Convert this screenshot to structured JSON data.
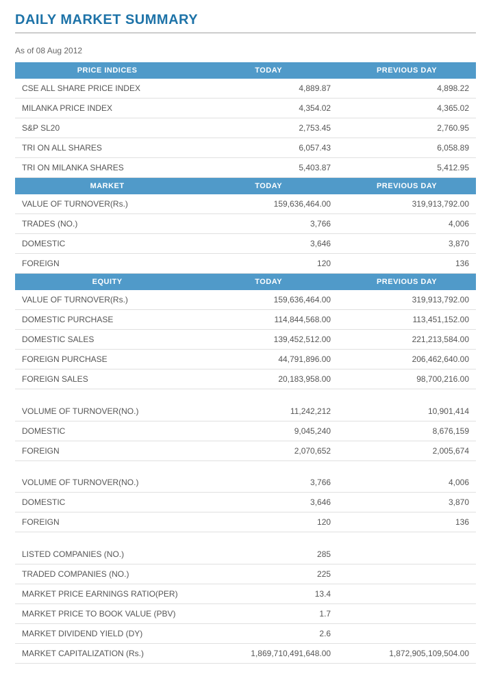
{
  "page_title": "DAILY MARKET SUMMARY",
  "as_of": "As of 08 Aug 2012",
  "colors": {
    "title": "#1e73a8",
    "header_bg": "#509ac9",
    "header_text": "#ffffff",
    "text": "#555555",
    "divider": "#e0e0e0",
    "title_divider": "#cccccc"
  },
  "columns": {
    "today": "TODAY",
    "previous": "PREVIOUS DAY"
  },
  "sections": [
    {
      "title": "PRICE INDICES",
      "groups": [
        [
          {
            "label": "CSE ALL SHARE PRICE INDEX",
            "today": "4,889.87",
            "previous": "4,898.22"
          },
          {
            "label": "MILANKA PRICE INDEX",
            "today": "4,354.02",
            "previous": "4,365.02"
          },
          {
            "label": "S&P SL20",
            "today": "2,753.45",
            "previous": "2,760.95"
          },
          {
            "label": "TRI ON ALL SHARES",
            "today": "6,057.43",
            "previous": "6,058.89"
          },
          {
            "label": "TRI ON MILANKA SHARES",
            "today": "5,403.87",
            "previous": "5,412.95"
          }
        ]
      ]
    },
    {
      "title": "MARKET",
      "groups": [
        [
          {
            "label": "VALUE OF TURNOVER(Rs.)",
            "today": "159,636,464.00",
            "previous": "319,913,792.00"
          },
          {
            "label": "TRADES (NO.)",
            "today": "3,766",
            "previous": "4,006"
          },
          {
            "label": "DOMESTIC",
            "today": "3,646",
            "previous": "3,870"
          },
          {
            "label": "FOREIGN",
            "today": "120",
            "previous": "136"
          }
        ]
      ]
    },
    {
      "title": "EQUITY",
      "groups": [
        [
          {
            "label": "VALUE OF TURNOVER(Rs.)",
            "today": "159,636,464.00",
            "previous": "319,913,792.00"
          },
          {
            "label": "DOMESTIC PURCHASE",
            "today": "114,844,568.00",
            "previous": "113,451,152.00"
          },
          {
            "label": "DOMESTIC SALES",
            "today": "139,452,512.00",
            "previous": "221,213,584.00"
          },
          {
            "label": "FOREIGN PURCHASE",
            "today": "44,791,896.00",
            "previous": "206,462,640.00"
          },
          {
            "label": "FOREIGN SALES",
            "today": "20,183,958.00",
            "previous": "98,700,216.00"
          }
        ],
        [
          {
            "label": "VOLUME OF TURNOVER(NO.)",
            "today": "11,242,212",
            "previous": "10,901,414"
          },
          {
            "label": "DOMESTIC",
            "today": "9,045,240",
            "previous": "8,676,159"
          },
          {
            "label": "FOREIGN",
            "today": "2,070,652",
            "previous": "2,005,674"
          }
        ],
        [
          {
            "label": "VOLUME OF TURNOVER(NO.)",
            "today": "3,766",
            "previous": "4,006"
          },
          {
            "label": "DOMESTIC",
            "today": "3,646",
            "previous": "3,870"
          },
          {
            "label": "FOREIGN",
            "today": "120",
            "previous": "136"
          }
        ],
        [
          {
            "label": "LISTED COMPANIES (NO.)",
            "today": "285",
            "previous": ""
          },
          {
            "label": "TRADED COMPANIES (NO.)",
            "today": "225",
            "previous": ""
          },
          {
            "label": "MARKET PRICE EARNINGS RATIO(PER)",
            "today": "13.4",
            "previous": ""
          },
          {
            "label": "MARKET PRICE TO BOOK VALUE (PBV)",
            "today": "1.7",
            "previous": ""
          },
          {
            "label": "MARKET DIVIDEND YIELD (DY)",
            "today": "2.6",
            "previous": ""
          },
          {
            "label": "MARKET CAPITALIZATION (Rs.)",
            "today": "1,869,710,491,648.00",
            "previous": "1,872,905,109,504.00"
          }
        ]
      ]
    }
  ]
}
